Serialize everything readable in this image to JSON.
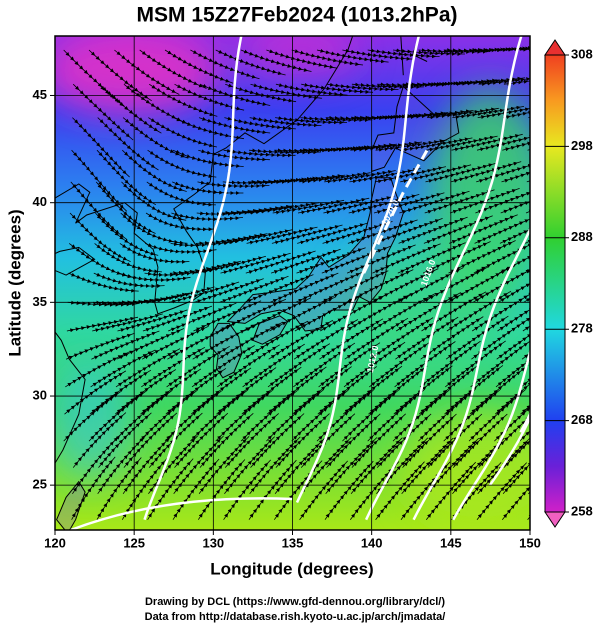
{
  "title": "MSM 15Z27Feb2024 (1013.2hPa)",
  "map": {
    "projection": "mercator",
    "xlim": [
      120,
      150
    ],
    "ylim": [
      22.4,
      47.6
    ],
    "xticks": [
      120,
      125,
      130,
      135,
      140,
      145,
      150
    ],
    "yticks": [
      25,
      30,
      35,
      40,
      45
    ],
    "x_label": "Longitude (degrees)",
    "y_label": "Latitude  (degrees)",
    "grid": true,
    "contour_labels": [
      "1020.0",
      "1016.0",
      "1012.0"
    ]
  },
  "colorbar": {
    "lim": [
      258,
      308
    ],
    "ticks": [
      258,
      268,
      278,
      288,
      298,
      308
    ]
  },
  "credits": [
    "Drawing by DCL (https://www.gfd-dennou.org/library/dcl/)",
    "Data from http://database.rish.kyoto-u.ac.jp/arch/jmadata/"
  ]
}
